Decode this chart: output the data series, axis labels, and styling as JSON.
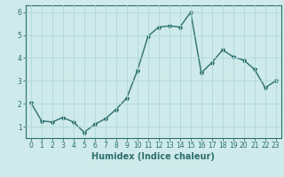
{
  "x": [
    0,
    1,
    2,
    3,
    4,
    5,
    6,
    7,
    8,
    9,
    10,
    11,
    12,
    13,
    14,
    15,
    16,
    17,
    18,
    19,
    20,
    21,
    22,
    23
  ],
  "y": [
    2.05,
    1.25,
    1.2,
    1.4,
    1.2,
    0.75,
    1.1,
    1.35,
    1.75,
    2.25,
    3.45,
    4.95,
    5.35,
    5.4,
    5.35,
    6.0,
    3.35,
    3.8,
    4.35,
    4.05,
    3.9,
    3.5,
    2.7,
    3.0
  ],
  "xlabel": "Humidex (Indice chaleur)",
  "line_color": "#2d6e6e",
  "marker": "*",
  "marker_size": 3,
  "bg_color": "#ceeaea",
  "grid_color": "#b0d8d8",
  "ylim": [
    0.5,
    6.3
  ],
  "xlim": [
    -0.5,
    23.5
  ],
  "yticks": [
    1,
    2,
    3,
    4,
    5,
    6
  ],
  "xticks": [
    0,
    1,
    2,
    3,
    4,
    5,
    6,
    7,
    8,
    9,
    10,
    11,
    12,
    13,
    14,
    15,
    16,
    17,
    18,
    19,
    20,
    21,
    22,
    23
  ],
  "tick_label_fontsize": 5.5,
  "xlabel_fontsize": 7,
  "line_width": 1.0
}
